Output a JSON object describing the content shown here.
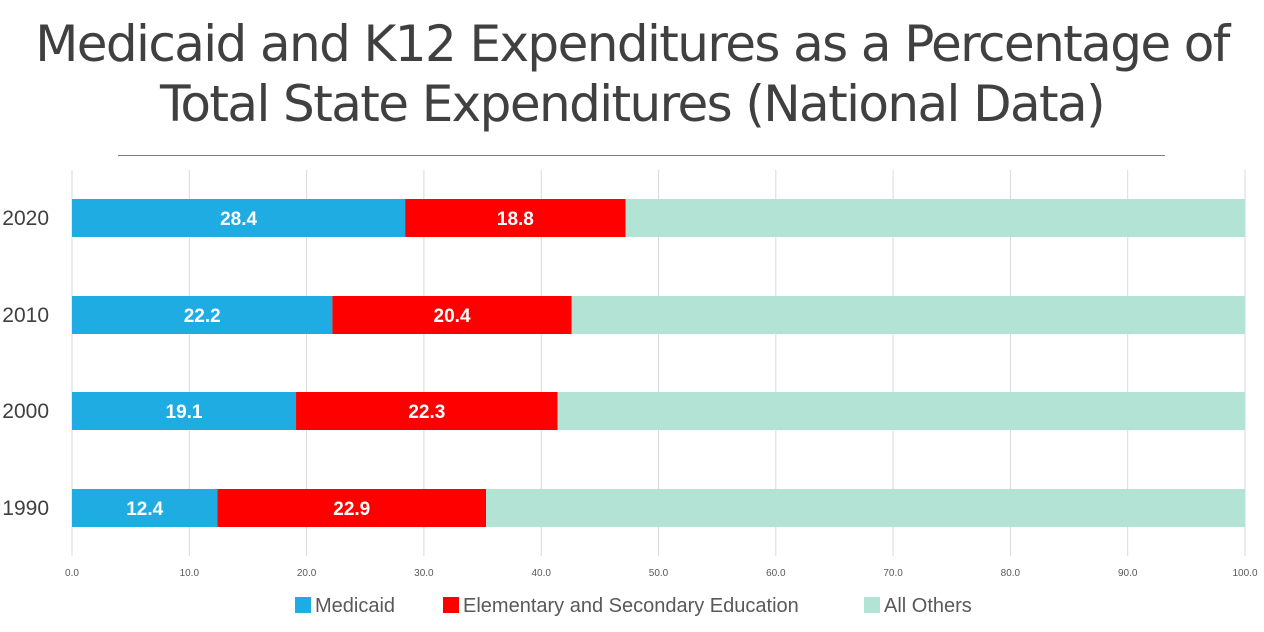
{
  "title": "Medicaid and K12 Expenditures as a Percentage of Total State Expenditures (National Data)",
  "colors": {
    "medicaid": "#1EACE3",
    "education": "#FF0000",
    "others": "#B3E3D5",
    "grid": "#d9d9d9",
    "title": "#404040"
  },
  "chart_data": {
    "type": "bar",
    "orientation": "horizontal",
    "stacked": true,
    "title": "Medicaid and K12 Expenditures as a Percentage of Total State Expenditures (National Data)",
    "categories": [
      "2020",
      "2010",
      "2000",
      "1990"
    ],
    "series": [
      {
        "name": "Medicaid",
        "values": [
          28.4,
          22.2,
          19.1,
          12.4
        ],
        "labels": [
          "28.4",
          "22.2",
          "19.1",
          "12.4"
        ],
        "color": "#1EACE3"
      },
      {
        "name": "Elementary and Secondary Education",
        "values": [
          18.8,
          20.4,
          22.3,
          22.9
        ],
        "labels": [
          "18.8",
          "20.4",
          "22.3",
          "22.9"
        ],
        "color": "#FF0000"
      },
      {
        "name": "All Others",
        "values": [
          52.8,
          57.4,
          58.6,
          64.7
        ],
        "color": "#B3E3D5"
      }
    ],
    "xlim": [
      0,
      100
    ],
    "xticks": [
      "0.0",
      "10.0",
      "20.0",
      "30.0",
      "40.0",
      "50.0",
      "60.0",
      "70.0",
      "80.0",
      "90.0",
      "100.0"
    ],
    "grid": true,
    "legend": "bottom",
    "xlabel": "",
    "ylabel": ""
  }
}
